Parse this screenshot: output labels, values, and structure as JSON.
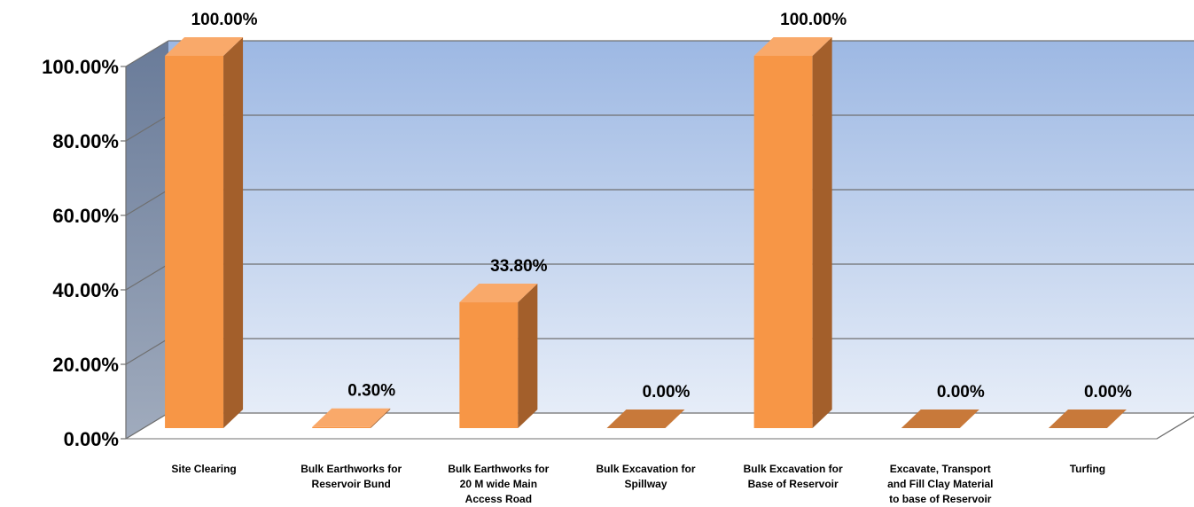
{
  "chart_data": {
    "type": "bar",
    "categories": [
      [
        "Site Clearing"
      ],
      [
        "Bulk Earthworks for",
        "Reservoir Bund"
      ],
      [
        "Bulk Earthworks for",
        "20 M wide Main",
        "Access Road"
      ],
      [
        "Bulk Excavation for",
        "Spillway"
      ],
      [
        "Bulk Excavation for",
        "Base of Reservoir"
      ],
      [
        "Excavate, Transport",
        "and Fill Clay Material",
        "to base of Reservoir"
      ],
      [
        "Turfing"
      ]
    ],
    "values": [
      100,
      0.3,
      33.8,
      0,
      100,
      0,
      0
    ],
    "data_labels": [
      "100.00%",
      "0.30%",
      "33.80%",
      "0.00%",
      "100.00%",
      "0.00%",
      "0.00%"
    ],
    "ylim": [
      0,
      100
    ],
    "yticks": [
      "0.00%",
      "20.00%",
      "40.00%",
      "60.00%",
      "80.00%",
      "100.00%"
    ],
    "grid": true,
    "three_d": true,
    "colors": {
      "bar_front": "#f79646",
      "bar_side": "#a35f2b",
      "bar_top": "#c8793a",
      "back_wall_top": "#9db8e3",
      "back_wall_bottom": "#e6edf8",
      "side_wall_top": "#697b99",
      "side_wall_bottom": "#9ca8bb",
      "grid": "#6f6f6f"
    }
  }
}
